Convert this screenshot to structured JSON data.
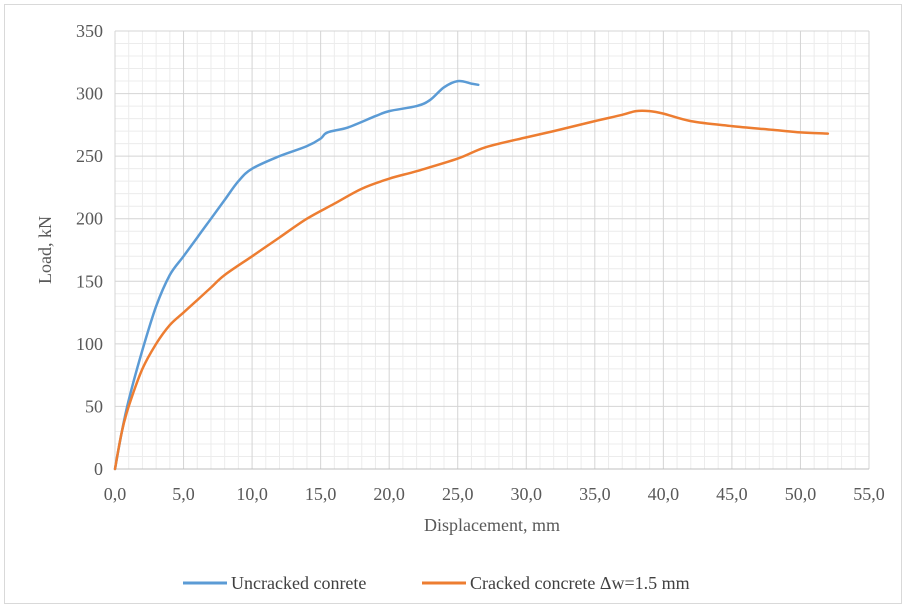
{
  "chart_data": {
    "type": "line",
    "title": "",
    "xlabel": "Displacement, mm",
    "ylabel": "Load, kN",
    "xlim": [
      0,
      55
    ],
    "ylim": [
      0,
      350
    ],
    "x_ticks": [
      "0,0",
      "5,0",
      "10,0",
      "15,0",
      "20,0",
      "25,0",
      "30,0",
      "35,0",
      "40,0",
      "45,0",
      "50,0",
      "55,0"
    ],
    "x_tick_values": [
      0,
      5,
      10,
      15,
      20,
      25,
      30,
      35,
      40,
      45,
      50,
      55
    ],
    "y_ticks": [
      "0",
      "50",
      "100",
      "150",
      "200",
      "250",
      "300",
      "350"
    ],
    "y_tick_values": [
      0,
      50,
      100,
      150,
      200,
      250,
      300,
      350
    ],
    "grid": "major and minor",
    "legend_position": "bottom",
    "series": [
      {
        "name": "Uncracked conrete",
        "color": "#5b9bd5",
        "points": [
          [
            0,
            0
          ],
          [
            0.5,
            30
          ],
          [
            1,
            55
          ],
          [
            2,
            95
          ],
          [
            3,
            130
          ],
          [
            4,
            155
          ],
          [
            5,
            170
          ],
          [
            6,
            185
          ],
          [
            7,
            200
          ],
          [
            8,
            215
          ],
          [
            9,
            230
          ],
          [
            10,
            240
          ],
          [
            12,
            250
          ],
          [
            14,
            258
          ],
          [
            15,
            264
          ],
          [
            15.5,
            269
          ],
          [
            17,
            273
          ],
          [
            19,
            282
          ],
          [
            20,
            286
          ],
          [
            22,
            290
          ],
          [
            23,
            295
          ],
          [
            24,
            305
          ],
          [
            25,
            310
          ],
          [
            26,
            308
          ],
          [
            26.5,
            307
          ]
        ]
      },
      {
        "name": "Cracked concrete Δw=1.5 mm",
        "color": "#ed7d31",
        "points": [
          [
            0,
            0
          ],
          [
            0.5,
            30
          ],
          [
            1,
            50
          ],
          [
            2,
            80
          ],
          [
            3,
            100
          ],
          [
            4,
            115
          ],
          [
            5,
            125
          ],
          [
            6,
            135
          ],
          [
            7,
            145
          ],
          [
            8,
            155
          ],
          [
            10,
            170
          ],
          [
            12,
            185
          ],
          [
            14,
            200
          ],
          [
            16,
            212
          ],
          [
            18,
            224
          ],
          [
            20,
            232
          ],
          [
            22,
            238
          ],
          [
            25,
            248
          ],
          [
            27,
            257
          ],
          [
            30,
            265
          ],
          [
            32,
            270
          ],
          [
            35,
            278
          ],
          [
            37,
            283
          ],
          [
            38,
            286
          ],
          [
            39,
            286
          ],
          [
            40,
            284
          ],
          [
            42,
            278
          ],
          [
            45,
            274
          ],
          [
            48,
            271
          ],
          [
            50,
            269
          ],
          [
            52,
            268
          ]
        ]
      }
    ]
  }
}
